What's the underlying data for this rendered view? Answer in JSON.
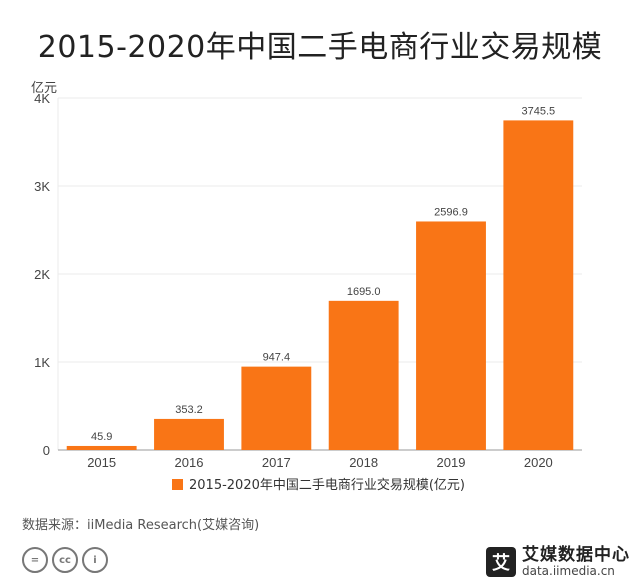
{
  "chart_data": {
    "type": "bar",
    "title": "2015-2020年中国二手电商行业交易规模",
    "ylabel": "亿元",
    "categories": [
      "2015",
      "2016",
      "2017",
      "2018",
      "2019",
      "2020"
    ],
    "series": [
      {
        "name": "2015-2020年中国二手电商行业交易规模(亿元)",
        "values": [
          45.9,
          353.2,
          947.4,
          1695.0,
          2596.9,
          3745.5
        ],
        "value_labels": [
          "45.9",
          "353.2",
          "947.4",
          "1695.0",
          "2596.9",
          "3745.5"
        ],
        "color": "#F97516"
      }
    ],
    "ylim": [
      0,
      4000
    ],
    "yticks": [
      0,
      1000,
      2000,
      3000,
      4000
    ],
    "ytick_labels": [
      "0",
      "1K",
      "2K",
      "3K",
      "4K"
    ],
    "grid": true,
    "legend_position": "bottom-center"
  },
  "source": "数据来源：iiMedia Research(艾媒咨询)",
  "license_icons": [
    "equals-icon",
    "cc-icon",
    "person-icon"
  ],
  "license_glyphs": [
    "=",
    "cc",
    "i"
  ],
  "brand": {
    "logo_glyph": "艾",
    "name": "艾媒数据中心",
    "url": "data.iimedia.cn"
  },
  "colors": {
    "bar": "#F97516",
    "grid": "#EBEBEB",
    "axis": "#999999"
  }
}
